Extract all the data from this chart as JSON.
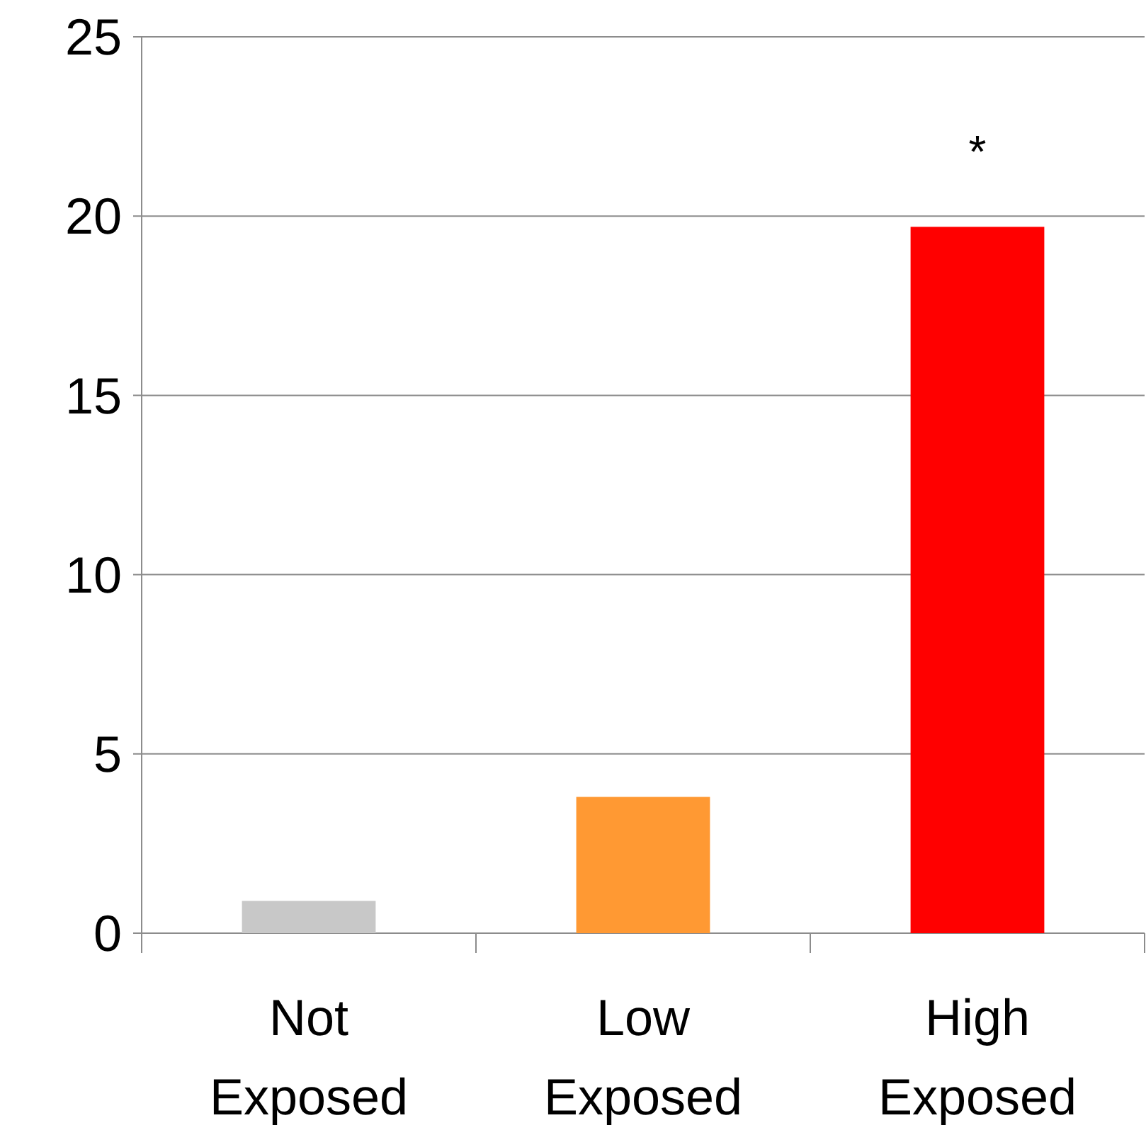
{
  "chart_data": {
    "type": "bar",
    "categories": [
      "Not Exposed",
      "Low Exposed",
      "High Exposed"
    ],
    "values": [
      0.9,
      3.8,
      19.7
    ],
    "colors": [
      "#c8c8c8",
      "#ff9933",
      "#ff0000"
    ],
    "ylim": [
      0,
      25
    ],
    "yticks": [
      0,
      5,
      10,
      15,
      20,
      25
    ],
    "grid": "y",
    "annotations": [
      "*"
    ]
  }
}
